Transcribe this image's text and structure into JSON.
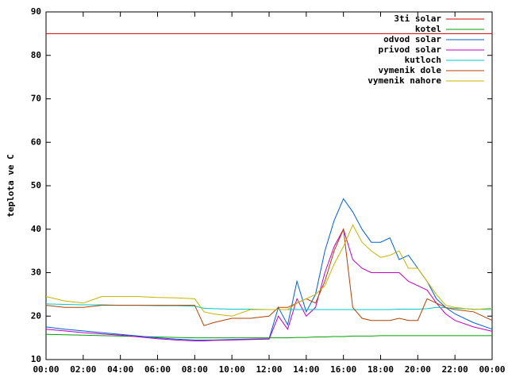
{
  "chart_data": {
    "type": "line",
    "y_label": "teplota ve C",
    "x": [
      0,
      1,
      2,
      3,
      4,
      5,
      6,
      7,
      8,
      8.5,
      9,
      10,
      11,
      12,
      12.5,
      13,
      13.5,
      14,
      14.5,
      15,
      15.5,
      16,
      16.5,
      17,
      17.5,
      18,
      18.5,
      19,
      19.5,
      20,
      20.5,
      21,
      21.5,
      22,
      23,
      24
    ],
    "xlim": [
      0,
      24
    ],
    "xticks": [
      {
        "value": 0,
        "label": "00:00"
      },
      {
        "value": 2,
        "label": "02:00"
      },
      {
        "value": 4,
        "label": "04:00"
      },
      {
        "value": 6,
        "label": "06:00"
      },
      {
        "value": 8,
        "label": "08:00"
      },
      {
        "value": 10,
        "label": "10:00"
      },
      {
        "value": 12,
        "label": "12:00"
      },
      {
        "value": 14,
        "label": "14:00"
      },
      {
        "value": 16,
        "label": "16:00"
      },
      {
        "value": 18,
        "label": "18:00"
      },
      {
        "value": 20,
        "label": "20:00"
      },
      {
        "value": 22,
        "label": "22:00"
      },
      {
        "value": 24,
        "label": "00:00"
      }
    ],
    "ylim": [
      10,
      90
    ],
    "yticks": [
      10,
      20,
      30,
      40,
      50,
      60,
      70,
      80,
      90
    ],
    "grid": false,
    "legend": "top-right",
    "series": [
      {
        "name": "3ti solar",
        "color": "#d00000",
        "values": [
          85,
          85,
          85,
          85,
          85,
          85,
          85,
          85,
          85,
          85,
          85,
          85,
          85,
          85,
          85,
          85,
          85,
          85,
          85,
          85,
          85,
          85,
          85,
          85,
          85,
          85,
          85,
          85,
          85,
          85,
          85,
          85,
          85,
          85,
          85,
          85
        ]
      },
      {
        "name": "kotel",
        "color": "#00a000",
        "values": [
          15.8,
          15.7,
          15.6,
          15.5,
          15.4,
          15.3,
          15.2,
          15.1,
          15,
          15,
          15,
          15,
          15,
          15,
          15,
          15,
          15.1,
          15.1,
          15.2,
          15.2,
          15.3,
          15.3,
          15.4,
          15.4,
          15.4,
          15.5,
          15.5,
          15.5,
          15.5,
          15.5,
          15.5,
          15.5,
          15.5,
          15.5,
          15.5,
          15.5
        ]
      },
      {
        "name": "odvod solar",
        "color": "#0060d0",
        "values": [
          17.5,
          17,
          16.6,
          16.2,
          15.8,
          15.4,
          15,
          14.7,
          14.5,
          14.5,
          14.5,
          14.6,
          14.7,
          14.8,
          22,
          18,
          28,
          21,
          25,
          35,
          42,
          47,
          44,
          40,
          37,
          37,
          38,
          33,
          34,
          31,
          28,
          24,
          22,
          20.5,
          18.5,
          17
        ]
      },
      {
        "name": "privod solar",
        "color": "#c000c0",
        "values": [
          17,
          16.6,
          16.2,
          15.9,
          15.6,
          15.2,
          14.8,
          14.5,
          14.3,
          14.3,
          14.4,
          14.5,
          14.6,
          14.7,
          20,
          17,
          24,
          20,
          22,
          30,
          36,
          40,
          33,
          31,
          30,
          30,
          30,
          30,
          28,
          27,
          26,
          23,
          20.5,
          19,
          17.5,
          16.5
        ]
      },
      {
        "name": "kutloch",
        "color": "#00c8c8",
        "values": [
          22.8,
          22.7,
          22.6,
          22.6,
          22.5,
          22.5,
          22.4,
          22.4,
          22.3,
          21.8,
          21.7,
          21.6,
          21.6,
          21.5,
          21.5,
          21.5,
          21.5,
          21.5,
          21.5,
          21.5,
          21.5,
          21.5,
          21.5,
          21.5,
          21.5,
          21.5,
          21.5,
          21.6,
          21.6,
          21.6,
          21.7,
          22,
          21.9,
          21.8,
          21.6,
          21.5
        ]
      },
      {
        "name": "vymenik dole",
        "color": "#b04000",
        "values": [
          22.5,
          22,
          22,
          22.5,
          22.5,
          22.5,
          22.5,
          22.5,
          22.5,
          17.8,
          18.5,
          19.5,
          19.5,
          20,
          22,
          22,
          23,
          24,
          23,
          28,
          35,
          40,
          22,
          19.5,
          19,
          19,
          19,
          19.5,
          19,
          19,
          24,
          23,
          22,
          21.5,
          21,
          19
        ]
      },
      {
        "name": "vymenik nahore",
        "color": "#c8b400",
        "values": [
          24.5,
          23.5,
          23,
          24.5,
          24.5,
          24.5,
          24.3,
          24.2,
          24,
          21,
          20.5,
          20,
          21.5,
          21.5,
          21.5,
          21.5,
          23,
          24,
          25,
          27,
          32,
          36,
          41,
          37,
          35,
          33.5,
          34,
          35,
          31,
          31,
          28,
          25,
          22.5,
          22,
          21.5,
          21.8
        ]
      }
    ]
  }
}
